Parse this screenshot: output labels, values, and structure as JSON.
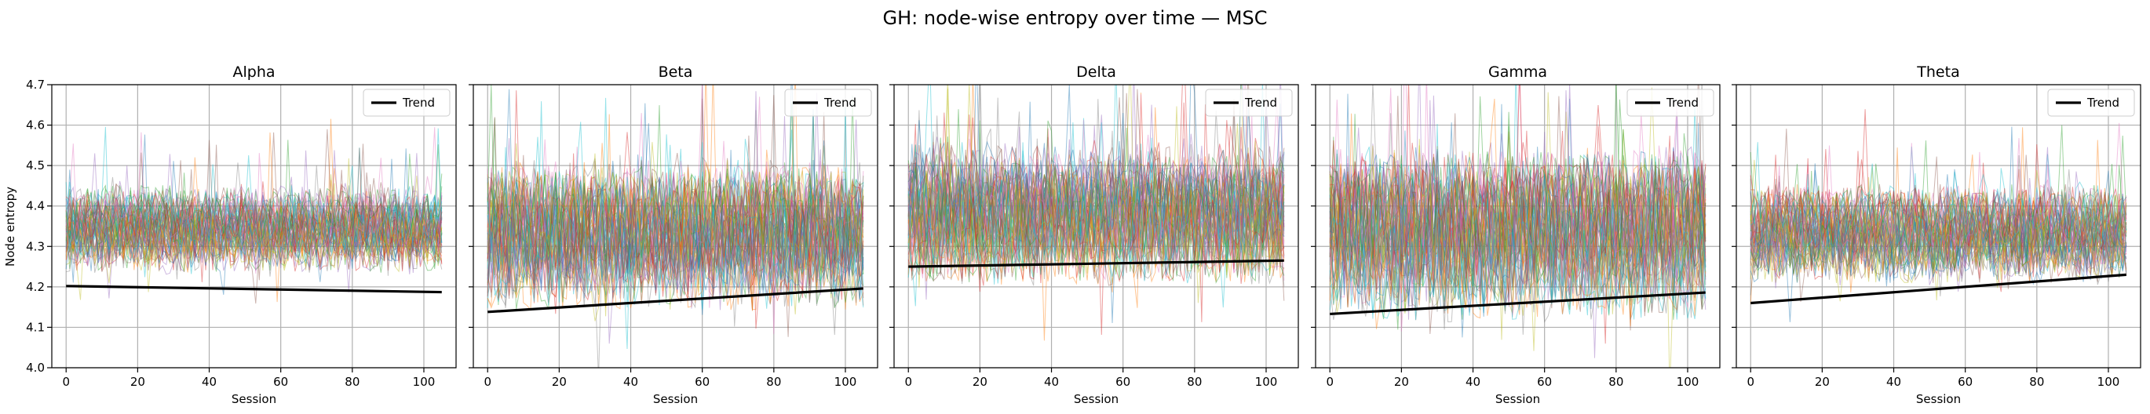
{
  "figure": {
    "suptitle": "GH: node-wise entropy over time — MSC"
  },
  "chart_data": {
    "type": "line",
    "shared_y": true,
    "ylabel": "Node entropy",
    "xlabel": "Session",
    "xlim": [
      -4,
      109
    ],
    "ylim": [
      4.0,
      4.7
    ],
    "x_ticks": [
      0,
      20,
      40,
      60,
      80,
      100
    ],
    "y_ticks": [
      4.0,
      4.1,
      4.2,
      4.3,
      4.4,
      4.5,
      4.6,
      4.7
    ],
    "grid": true,
    "legend_position": "top-right",
    "legend_label": "Trend",
    "sessions": 106,
    "node_line_colors": [
      "#1f77b4",
      "#ff7f0e",
      "#2ca02c",
      "#d62728",
      "#9467bd",
      "#8c564b",
      "#e377c2",
      "#7f7f7f",
      "#bcbd22",
      "#17becf"
    ],
    "trend_color": "#000000",
    "panels": [
      {
        "title": "Alpha",
        "trend": {
          "x": [
            0,
            105
          ],
          "y": [
            4.202,
            4.187
          ]
        },
        "node_band": {
          "mean": 4.34,
          "spread": 0.1
        }
      },
      {
        "title": "Beta",
        "trend": {
          "x": [
            0,
            105
          ],
          "y": [
            4.138,
            4.196
          ]
        },
        "node_band": {
          "mean": 4.33,
          "spread": 0.17
        }
      },
      {
        "title": "Delta",
        "trend": {
          "x": [
            0,
            105
          ],
          "y": [
            4.25,
            4.265
          ]
        },
        "node_band": {
          "mean": 4.38,
          "spread": 0.16
        }
      },
      {
        "title": "Gamma",
        "trend": {
          "x": [
            0,
            105
          ],
          "y": [
            4.133,
            4.186
          ]
        },
        "node_band": {
          "mean": 4.33,
          "spread": 0.19
        }
      },
      {
        "title": "Theta",
        "trend": {
          "x": [
            0,
            105
          ],
          "y": [
            4.16,
            4.23
          ]
        },
        "node_band": {
          "mean": 4.33,
          "spread": 0.11
        }
      }
    ]
  }
}
